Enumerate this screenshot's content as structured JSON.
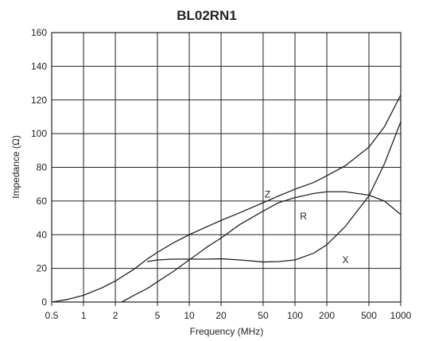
{
  "chart_data": {
    "type": "line",
    "title": "BL02RN1",
    "xlabel": "Frequency (MHz)",
    "ylabel": "Impedance (Ω)",
    "x_scale": "log",
    "xlim": [
      0.5,
      1000
    ],
    "ylim": [
      0,
      160
    ],
    "x_ticks": [
      0.5,
      1,
      2,
      5,
      10,
      20,
      50,
      100,
      200,
      500,
      1000
    ],
    "x_tick_labels": [
      "0.5",
      "1",
      "2",
      "5",
      "10",
      "20",
      "50",
      "100",
      "200",
      "500",
      "1000"
    ],
    "y_ticks": [
      0,
      20,
      40,
      60,
      80,
      100,
      120,
      140,
      160
    ],
    "y_tick_labels": [
      "0",
      "20",
      "40",
      "60",
      "80",
      "100",
      "120",
      "140",
      "160"
    ],
    "grid": true,
    "legend": "inline labels",
    "series": [
      {
        "name": "Z",
        "label_at": [
          55,
          64
        ],
        "x": [
          0.5,
          0.7,
          1,
          1.5,
          2,
          3,
          4,
          5,
          7,
          10,
          15,
          20,
          30,
          50,
          70,
          100,
          150,
          200,
          300,
          500,
          700,
          1000
        ],
        "y": [
          0,
          1.5,
          4,
          8.5,
          12.5,
          19.5,
          25.5,
          29.5,
          35,
          40,
          45,
          48.5,
          53,
          59,
          63,
          67,
          71,
          75,
          81,
          92,
          104,
          123
        ]
      },
      {
        "name": "R",
        "label_at": [
          120,
          51
        ],
        "x": [
          2.3,
          3,
          4,
          5,
          7,
          10,
          15,
          20,
          30,
          50,
          70,
          100,
          150,
          200,
          300,
          500,
          700,
          1000
        ],
        "y": [
          0,
          4,
          8,
          12,
          18,
          25,
          33,
          38,
          46,
          54,
          59,
          62,
          64.5,
          65.5,
          65.5,
          63.5,
          60,
          52
        ]
      },
      {
        "name": "X",
        "label_at": [
          300,
          25
        ],
        "x": [
          4,
          5,
          7,
          10,
          15,
          20,
          30,
          50,
          70,
          100,
          150,
          200,
          300,
          500,
          700,
          1000
        ],
        "y": [
          24,
          25,
          25.5,
          25.5,
          25.5,
          25.7,
          25,
          23.8,
          24,
          25,
          29,
          34,
          45,
          63,
          82,
          107
        ]
      }
    ]
  }
}
